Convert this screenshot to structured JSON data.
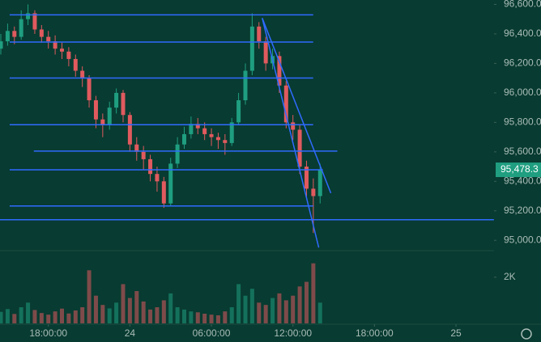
{
  "chart_data": {
    "type": "candlestick",
    "x": [
      -3.5,
      -3,
      -2.5,
      -2,
      -1.5,
      -1,
      -0.5,
      0,
      0.5,
      1,
      1.5,
      2,
      2.5,
      3,
      3.5,
      4,
      4.5,
      5,
      5.5,
      6,
      6.5,
      7,
      7.5,
      8,
      8.5,
      9,
      9.5,
      10,
      10.5,
      11,
      11.5,
      12,
      12.5,
      13,
      13.5,
      14,
      14.5,
      15,
      15.5,
      16,
      16.5,
      17,
      17.5,
      18,
      18.5,
      19,
      19.5,
      20
    ],
    "open": [
      96300,
      96350,
      96420,
      96380,
      96500,
      96540,
      96430,
      96380,
      96350,
      96300,
      96280,
      96230,
      96150,
      96100,
      95950,
      95820,
      95780,
      95900,
      96000,
      95850,
      95650,
      95600,
      95550,
      95450,
      95400,
      95250,
      95520,
      95650,
      95720,
      95790,
      95760,
      95720,
      95700,
      95680,
      95660,
      95800,
      95950,
      96150,
      96450,
      96350,
      96200,
      96250,
      96050,
      95800,
      95750,
      95500,
      95350,
      95300
    ],
    "high": [
      96400,
      96470,
      96450,
      96560,
      96600,
      96560,
      96460,
      96420,
      96390,
      96340,
      96310,
      96260,
      96180,
      96120,
      95980,
      95860,
      95940,
      96030,
      96020,
      95870,
      95700,
      95640,
      95580,
      95500,
      95430,
      95560,
      95700,
      95770,
      95840,
      95830,
      95800,
      95760,
      95730,
      95720,
      95830,
      96000,
      96200,
      96540,
      96480,
      96380,
      96300,
      96280,
      96080,
      95850,
      95780,
      95540,
      95420,
      95520
    ],
    "low": [
      96260,
      96320,
      96330,
      96360,
      96460,
      96400,
      96340,
      96300,
      96260,
      96230,
      96180,
      96110,
      96040,
      95900,
      95760,
      95700,
      95750,
      95860,
      95800,
      95600,
      95540,
      95480,
      95400,
      95330,
      95220,
      95230,
      95490,
      95620,
      95690,
      95720,
      95680,
      95640,
      95620,
      95580,
      95640,
      95780,
      95920,
      96120,
      96300,
      96150,
      96160,
      96000,
      95760,
      95680,
      95450,
      95280,
      95050,
      95250
    ],
    "close": [
      96350,
      96420,
      96380,
      96500,
      96540,
      96430,
      96380,
      96350,
      96300,
      96280,
      96230,
      96150,
      96100,
      95950,
      95820,
      95780,
      95900,
      96000,
      95850,
      95650,
      95600,
      95550,
      95450,
      95400,
      95250,
      95520,
      95650,
      95720,
      95790,
      95760,
      95720,
      95700,
      95680,
      95660,
      95800,
      95950,
      96150,
      96450,
      96350,
      96200,
      96250,
      96050,
      95800,
      95750,
      95500,
      95350,
      95300,
      95478.3
    ],
    "volume": [
      500,
      620,
      410,
      700,
      900,
      580,
      450,
      380,
      520,
      640,
      430,
      560,
      700,
      2300,
      1200,
      800,
      650,
      900,
      1700,
      1100,
      1400,
      950,
      600,
      700,
      1000,
      1300,
      700,
      600,
      520,
      480,
      420,
      380,
      350,
      520,
      700,
      1700,
      1200,
      1500,
      900,
      800,
      1100,
      1300,
      1000,
      1200,
      1600,
      1800,
      2600,
      900
    ],
    "up_color": "#1f9e80",
    "down_color": "#e05a5e",
    "drawing_color": "#2f6bff",
    "xlim": [
      -3.56,
      32.8
    ],
    "xticks": [
      {
        "value": 0,
        "label": "18:00:00"
      },
      {
        "value": 6,
        "label": "24"
      },
      {
        "value": 12,
        "label": "06:00:00"
      },
      {
        "value": 18,
        "label": "12:00:00"
      },
      {
        "value": 24,
        "label": "18:00:00"
      },
      {
        "value": 30,
        "label": "25"
      }
    ],
    "ylim": [
      94930,
      96630
    ],
    "yticks": [
      {
        "value": 96600,
        "label": "96,600.0"
      },
      {
        "value": 96400,
        "label": "96,400.0"
      },
      {
        "value": 96200,
        "label": "96,200.0"
      },
      {
        "value": 96000,
        "label": "96,000.0"
      },
      {
        "value": 95800,
        "label": "95,800.0"
      },
      {
        "value": 95600,
        "label": "95,600.0"
      },
      {
        "value": 95400,
        "label": "95,400.0"
      },
      {
        "value": 95200,
        "label": "95,200.0"
      },
      {
        "value": 95000,
        "label": "95,000.0"
      }
    ],
    "y2lim": [
      0,
      3150
    ],
    "y2ticks": [
      {
        "value": 2000,
        "label": "2K"
      }
    ],
    "last_price": {
      "value": 95478.3,
      "label": "95,478.3"
    },
    "drawings": [
      {
        "x": [
          -2.85,
          19.49
        ],
        "y": [
          96529,
          96529
        ]
      },
      {
        "x": [
          -2.85,
          19.49
        ],
        "y": [
          96345,
          96345
        ]
      },
      {
        "x": [
          -2.85,
          19.49
        ],
        "y": [
          96101,
          96101
        ]
      },
      {
        "x": [
          -2.85,
          19.49
        ],
        "y": [
          95784,
          95784
        ]
      },
      {
        "x": [
          -1.07,
          21.27
        ],
        "y": [
          95605,
          95605
        ]
      },
      {
        "x": [
          -2.85,
          20.2
        ],
        "y": [
          95478.3,
          95478.3
        ]
      },
      {
        "x": [
          -2.85,
          19.49
        ],
        "y": [
          95233,
          95233
        ]
      },
      {
        "x": [
          -3.56,
          32.79
        ],
        "y": [
          95140,
          95140
        ]
      },
      {
        "x": [
          15.74,
          20.79
        ],
        "y": [
          96507,
          95320
        ]
      },
      {
        "x": [
          15.74,
          19.9
        ],
        "y": [
          96507,
          94951
        ]
      }
    ]
  }
}
